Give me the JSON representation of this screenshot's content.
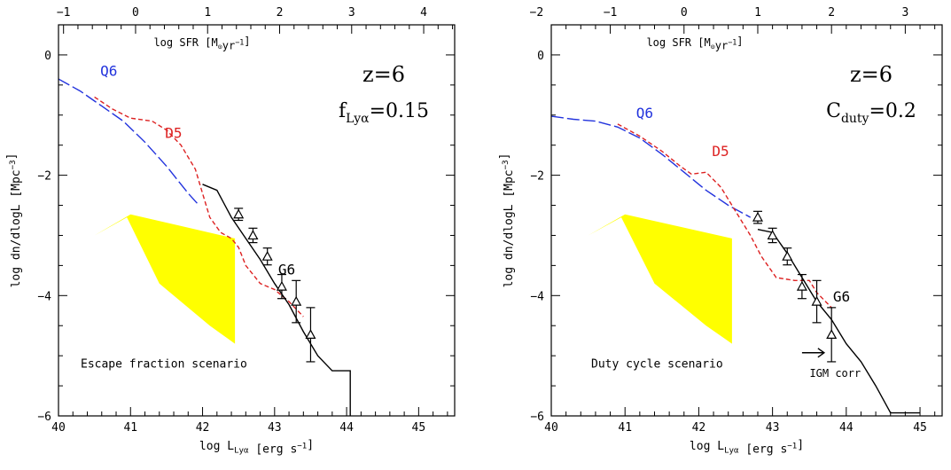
{
  "chart_data": [
    {
      "type": "line",
      "xlabel": "log L_Lyα [erg s⁻¹]",
      "ylabel": "log dn/dlogL [Mpc⁻³]",
      "top_axis_label": "log SFR [M_⊙yr⁻¹]",
      "xlim": [
        40,
        45.5
      ],
      "ylim": [
        -6,
        0.5
      ],
      "top_axis_ticks": [
        -1,
        0,
        1,
        2,
        3,
        4
      ],
      "top_axis_offset": 41.07,
      "x_ticks": [
        40,
        41,
        42,
        43,
        44,
        45
      ],
      "y_ticks": [
        -6,
        -4,
        -2,
        0
      ],
      "annotations": {
        "redshift": "z=6",
        "param_name": "f",
        "param_sub": "Lyα",
        "param_value": "=0.15",
        "scenario": "Escape fraction scenario",
        "igm": ""
      },
      "colors": {
        "Q6": "#2233dd",
        "D5": "#dd2222",
        "G6": "#000000",
        "band": "#ffff00"
      },
      "series": [
        {
          "name": "Q6",
          "style": "long-dash",
          "x": [
            40.0,
            40.3,
            40.6,
            40.9,
            41.2,
            41.5,
            41.8,
            41.95
          ],
          "y": [
            -0.4,
            -0.6,
            -0.85,
            -1.1,
            -1.45,
            -1.85,
            -2.3,
            -2.5
          ]
        },
        {
          "name": "D5",
          "style": "short-dash",
          "x": [
            40.5,
            40.75,
            41.0,
            41.3,
            41.5,
            41.7,
            41.9,
            42.0,
            42.1,
            42.25,
            42.4,
            42.5,
            42.6,
            42.8,
            43.0,
            43.2,
            43.4
          ],
          "y": [
            -0.7,
            -0.9,
            -1.05,
            -1.1,
            -1.25,
            -1.5,
            -1.9,
            -2.3,
            -2.7,
            -2.95,
            -3.05,
            -3.2,
            -3.5,
            -3.8,
            -3.9,
            -4.1,
            -4.35
          ]
        },
        {
          "name": "G6",
          "style": "solid",
          "x": [
            42.0,
            42.2,
            42.4,
            42.6,
            42.8,
            43.0,
            43.2,
            43.4,
            43.6,
            43.8,
            44.05,
            44.05
          ],
          "y": [
            -2.15,
            -2.25,
            -2.7,
            -3.05,
            -3.4,
            -3.8,
            -4.15,
            -4.6,
            -5.0,
            -5.25,
            -5.25,
            -6.0
          ]
        }
      ],
      "band": {
        "x": [
          40.5,
          40.5,
          41.0,
          42.45,
          42.45,
          42.1,
          41.4,
          40.95,
          40.5
        ],
        "y": [
          -0.4,
          -3.0,
          -2.65,
          -3.05,
          -4.8,
          -4.5,
          -3.8,
          -2.7,
          -3.0
        ]
      },
      "data_points": [
        {
          "x": 42.5,
          "y": -2.65,
          "err": 0.1
        },
        {
          "x": 42.7,
          "y": -3.0,
          "err": 0.12
        },
        {
          "x": 42.9,
          "y": -3.35,
          "err": 0.14
        },
        {
          "x": 43.1,
          "y": -3.85,
          "err": 0.2
        },
        {
          "x": 43.3,
          "y": -4.1,
          "err": 0.35
        },
        {
          "x": 43.5,
          "y": -4.65,
          "err": 0.45
        }
      ],
      "series_labels": [
        {
          "text": "Q6",
          "x": 40.58,
          "y": -0.35
        },
        {
          "text": "D5",
          "x": 41.48,
          "y": -1.38
        },
        {
          "text": "G6",
          "x": 43.05,
          "y": -3.65
        }
      ]
    },
    {
      "type": "line",
      "xlabel": "log L_Lyα [erg s⁻¹]",
      "ylabel": "log dn/dlogL [Mpc⁻³]",
      "top_axis_label": "log SFR [M_⊙yr⁻¹]",
      "xlim": [
        40,
        45.3
      ],
      "ylim": [
        -6,
        0.5
      ],
      "top_axis_ticks": [
        -2,
        -1,
        0,
        1,
        2,
        3
      ],
      "top_axis_offset": 41.8,
      "x_ticks": [
        40,
        41,
        42,
        43,
        44,
        45
      ],
      "y_ticks": [
        -6,
        -4,
        -2,
        0
      ],
      "annotations": {
        "redshift": "z=6",
        "param_name": "C",
        "param_sub": "duty",
        "param_value": "=0.2",
        "scenario": "Duty cycle scenario",
        "igm": "IGM corr"
      },
      "colors": {
        "Q6": "#2233dd",
        "D5": "#dd2222",
        "G6": "#000000",
        "band": "#ffff00"
      },
      "series": [
        {
          "name": "Q6",
          "style": "long-dash",
          "x": [
            40.0,
            40.3,
            40.6,
            40.9,
            41.2,
            41.5,
            41.8,
            42.1,
            42.4,
            42.7
          ],
          "y": [
            -1.02,
            -1.07,
            -1.1,
            -1.2,
            -1.38,
            -1.65,
            -1.95,
            -2.25,
            -2.5,
            -2.7
          ]
        },
        {
          "name": "D5",
          "style": "short-dash",
          "x": [
            40.9,
            41.2,
            41.5,
            41.75,
            41.9,
            42.1,
            42.3,
            42.5,
            42.7,
            42.85,
            43.05,
            43.3,
            43.5,
            43.6,
            43.8
          ],
          "y": [
            -1.15,
            -1.35,
            -1.6,
            -1.85,
            -1.98,
            -1.95,
            -2.2,
            -2.6,
            -3.0,
            -3.35,
            -3.7,
            -3.75,
            -3.75,
            -3.95,
            -4.2
          ]
        },
        {
          "name": "G6",
          "style": "solid",
          "x": [
            42.8,
            43.0,
            43.2,
            43.4,
            43.6,
            43.8,
            44.0,
            44.2,
            44.4,
            44.6,
            45.0
          ],
          "y": [
            -2.9,
            -2.95,
            -3.3,
            -3.7,
            -4.1,
            -4.4,
            -4.8,
            -5.1,
            -5.5,
            -5.95,
            -5.95
          ]
        }
      ],
      "band": {
        "x": [
          40.5,
          40.5,
          41.0,
          42.45,
          42.45,
          42.1,
          41.4,
          40.95,
          40.5
        ],
        "y": [
          -0.4,
          -3.0,
          -2.65,
          -3.05,
          -4.8,
          -4.5,
          -3.8,
          -2.7,
          -3.0
        ]
      },
      "data_points": [
        {
          "x": 42.8,
          "y": -2.7,
          "err": 0.1
        },
        {
          "x": 43.0,
          "y": -3.0,
          "err": 0.12
        },
        {
          "x": 43.2,
          "y": -3.35,
          "err": 0.14
        },
        {
          "x": 43.4,
          "y": -3.85,
          "err": 0.2
        },
        {
          "x": 43.6,
          "y": -4.1,
          "err": 0.35
        },
        {
          "x": 43.8,
          "y": -4.65,
          "err": 0.45
        }
      ],
      "series_labels": [
        {
          "text": "Q6",
          "x": 41.15,
          "y": -1.05
        },
        {
          "text": "D5",
          "x": 42.18,
          "y": -1.68
        },
        {
          "text": "G6",
          "x": 43.82,
          "y": -4.1
        }
      ],
      "igm_arrow": {
        "x0": 43.4,
        "x1": 43.7,
        "y": -4.95
      }
    }
  ]
}
